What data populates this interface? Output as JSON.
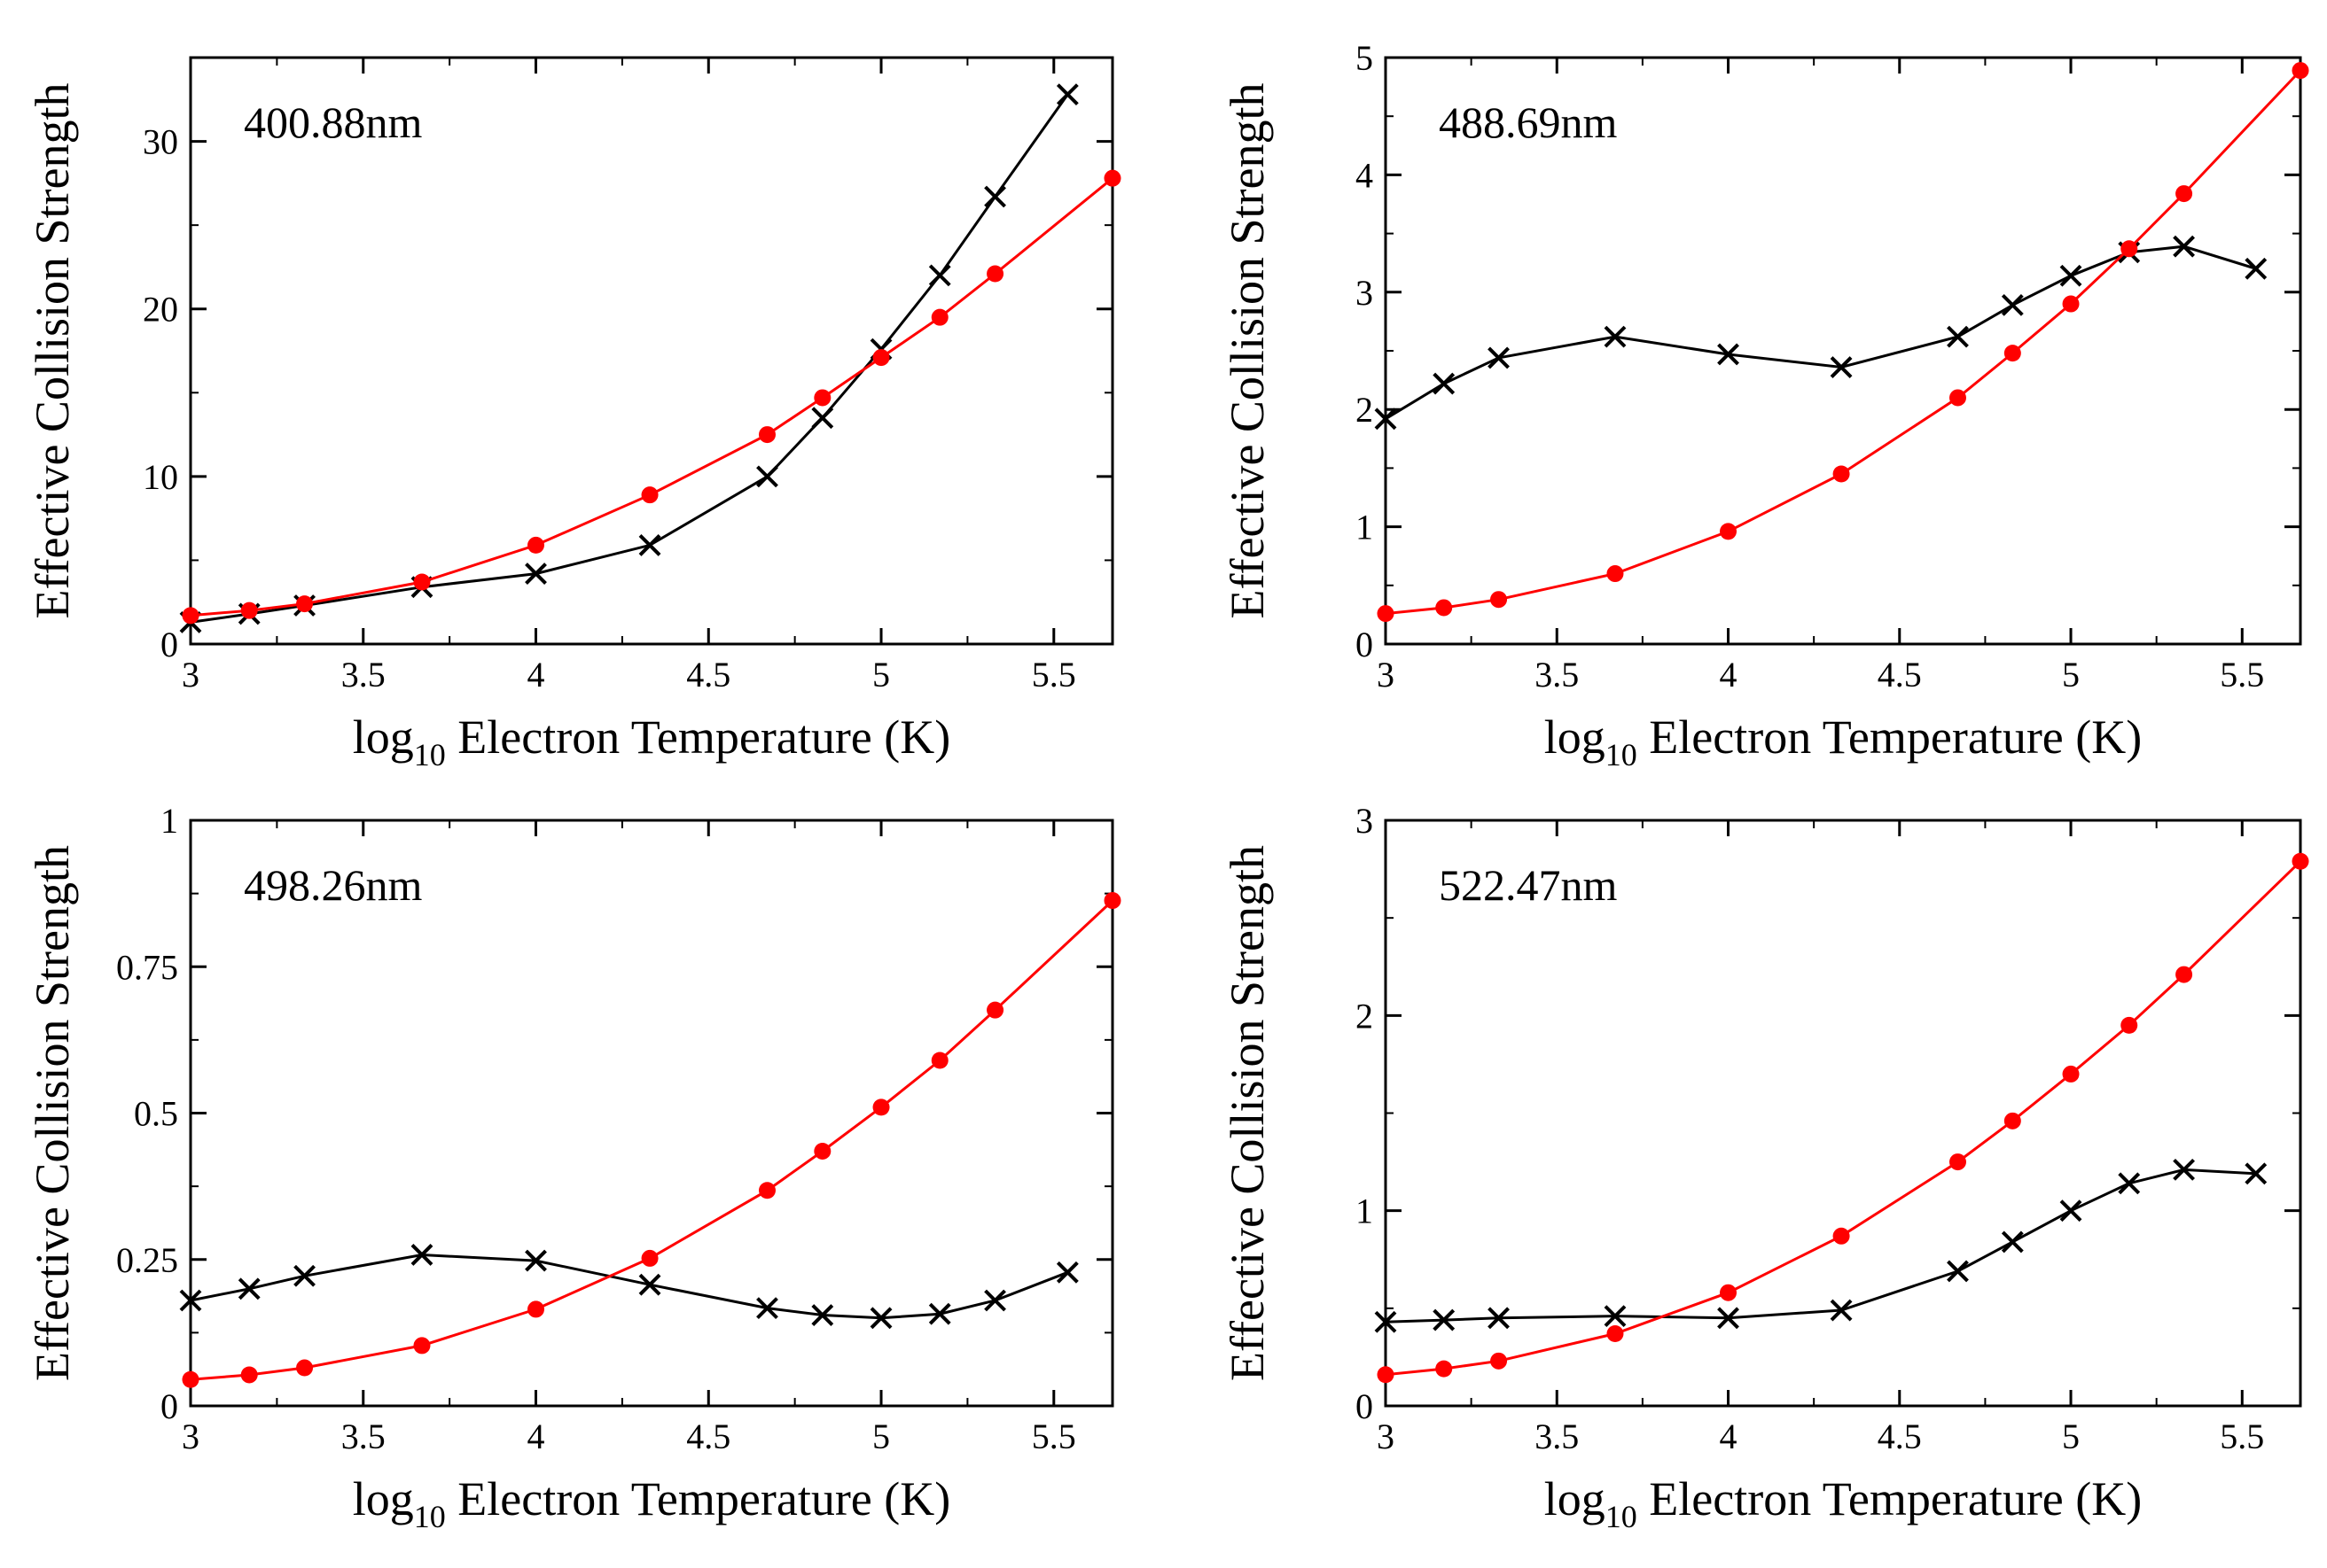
{
  "figure": {
    "colors": {
      "series_a": "#000000",
      "series_b": "#ff0000"
    }
  },
  "chart_data": [
    {
      "type": "line",
      "annotation": "400.88nm",
      "xlabel": "log10 Electron Temperature (K)",
      "xlabel_main": "log",
      "xlabel_sub": "10",
      "xlabel_rest": " Electron Temperature (K)",
      "ylabel": "Effective Collision Strength",
      "xlim": [
        3,
        5.67
      ],
      "ylim": [
        0,
        35
      ],
      "xticks": [
        3,
        3.5,
        4,
        4.5,
        5,
        5.5
      ],
      "xtick_labels": [
        "3",
        "3.5",
        "4",
        "4.5",
        "5",
        "5.5"
      ],
      "yticks": [
        0,
        10,
        20,
        30
      ],
      "ytick_labels": [
        "0",
        "10",
        "20",
        "30"
      ],
      "series": [
        {
          "name": "crosses (black)",
          "marker": "x",
          "color": "#000000",
          "x": [
            3.0,
            3.17,
            3.33,
            3.67,
            4.0,
            4.33,
            4.67,
            4.83,
            5.0,
            5.17,
            5.33,
            5.54
          ],
          "y": [
            1.3,
            1.8,
            2.3,
            3.4,
            4.2,
            5.9,
            10.0,
            13.5,
            17.6,
            22.0,
            26.7,
            32.8
          ]
        },
        {
          "name": "dots (red)",
          "marker": "circle",
          "color": "#ff0000",
          "x": [
            3.0,
            3.17,
            3.33,
            3.67,
            4.0,
            4.33,
            4.67,
            4.83,
            5.0,
            5.17,
            5.33,
            5.67
          ],
          "y": [
            1.7,
            2.0,
            2.4,
            3.7,
            5.9,
            8.9,
            12.5,
            14.7,
            17.1,
            19.5,
            22.1,
            27.8
          ]
        }
      ]
    },
    {
      "type": "line",
      "annotation": "488.69nm",
      "xlabel": "log10 Electron Temperature (K)",
      "xlabel_main": "log",
      "xlabel_sub": "10",
      "xlabel_rest": " Electron Temperature (K)",
      "ylabel": "Effective Collision Strength",
      "xlim": [
        3,
        5.67
      ],
      "ylim": [
        0,
        5
      ],
      "xticks": [
        3,
        3.5,
        4,
        4.5,
        5,
        5.5
      ],
      "xtick_labels": [
        "3",
        "3.5",
        "4",
        "4.5",
        "5",
        "5.5"
      ],
      "yticks": [
        0,
        1,
        2,
        3,
        4,
        5
      ],
      "ytick_labels": [
        "0",
        "1",
        "2",
        "3",
        "4",
        "5"
      ],
      "series": [
        {
          "name": "crosses (black)",
          "marker": "x",
          "color": "#000000",
          "x": [
            3.0,
            3.17,
            3.33,
            3.67,
            4.0,
            4.33,
            4.67,
            4.83,
            5.0,
            5.17,
            5.33,
            5.54
          ],
          "y": [
            1.92,
            2.22,
            2.44,
            2.62,
            2.47,
            2.36,
            2.62,
            2.89,
            3.14,
            3.34,
            3.39,
            3.2
          ]
        },
        {
          "name": "dots (red)",
          "marker": "circle",
          "color": "#ff0000",
          "x": [
            3.0,
            3.17,
            3.33,
            3.67,
            4.0,
            4.33,
            4.67,
            4.83,
            5.0,
            5.17,
            5.33,
            5.67
          ],
          "y": [
            0.26,
            0.31,
            0.38,
            0.6,
            0.96,
            1.45,
            2.1,
            2.48,
            2.9,
            3.37,
            3.84,
            4.89
          ]
        }
      ]
    },
    {
      "type": "line",
      "annotation": "498.26nm",
      "xlabel": "log10 Electron Temperature (K)",
      "xlabel_main": "log",
      "xlabel_sub": "10",
      "xlabel_rest": " Electron Temperature (K)",
      "ylabel": "Effective Collision Strength",
      "xlim": [
        3,
        5.67
      ],
      "ylim": [
        0,
        1
      ],
      "xticks": [
        3,
        3.5,
        4,
        4.5,
        5,
        5.5
      ],
      "xtick_labels": [
        "3",
        "3.5",
        "4",
        "4.5",
        "5",
        "5.5"
      ],
      "yticks": [
        0,
        0.25,
        0.5,
        0.75,
        1
      ],
      "ytick_labels": [
        "0",
        "0.25",
        "0.5",
        "0.75",
        "1"
      ],
      "series": [
        {
          "name": "crosses (black)",
          "marker": "x",
          "color": "#000000",
          "x": [
            3.0,
            3.17,
            3.33,
            3.67,
            4.0,
            4.33,
            4.67,
            4.83,
            5.0,
            5.17,
            5.33,
            5.54
          ],
          "y": [
            0.18,
            0.2,
            0.222,
            0.258,
            0.248,
            0.207,
            0.167,
            0.155,
            0.15,
            0.157,
            0.18,
            0.228
          ]
        },
        {
          "name": "dots (red)",
          "marker": "circle",
          "color": "#ff0000",
          "x": [
            3.0,
            3.17,
            3.33,
            3.67,
            4.0,
            4.33,
            4.67,
            4.83,
            5.0,
            5.17,
            5.33,
            5.67
          ],
          "y": [
            0.045,
            0.053,
            0.065,
            0.103,
            0.165,
            0.252,
            0.368,
            0.435,
            0.51,
            0.59,
            0.676,
            0.863
          ]
        }
      ]
    },
    {
      "type": "line",
      "annotation": "522.47nm",
      "xlabel": "log10 Electron Temperature (K)",
      "xlabel_main": "log",
      "xlabel_sub": "10",
      "xlabel_rest": " Electron Temperature (K)",
      "ylabel": "Effective Collision Strength",
      "xlim": [
        3,
        5.67
      ],
      "ylim": [
        0,
        3
      ],
      "xticks": [
        3,
        3.5,
        4,
        4.5,
        5,
        5.5
      ],
      "xtick_labels": [
        "3",
        "3.5",
        "4",
        "4.5",
        "5",
        "5.5"
      ],
      "yticks": [
        0,
        1,
        2,
        3
      ],
      "ytick_labels": [
        "0",
        "1",
        "2",
        "3"
      ],
      "series": [
        {
          "name": "crosses (black)",
          "marker": "x",
          "color": "#000000",
          "x": [
            3.0,
            3.17,
            3.33,
            3.67,
            4.0,
            4.33,
            4.67,
            4.83,
            5.0,
            5.17,
            5.33,
            5.54
          ],
          "y": [
            0.43,
            0.44,
            0.45,
            0.46,
            0.45,
            0.49,
            0.69,
            0.84,
            1.0,
            1.14,
            1.21,
            1.19
          ]
        },
        {
          "name": "dots (red)",
          "marker": "circle",
          "color": "#ff0000",
          "x": [
            3.0,
            3.17,
            3.33,
            3.67,
            4.0,
            4.33,
            4.67,
            4.83,
            5.0,
            5.17,
            5.33,
            5.67
          ],
          "y": [
            0.16,
            0.19,
            0.23,
            0.37,
            0.58,
            0.87,
            1.25,
            1.46,
            1.7,
            1.95,
            2.21,
            2.79
          ]
        }
      ]
    }
  ]
}
